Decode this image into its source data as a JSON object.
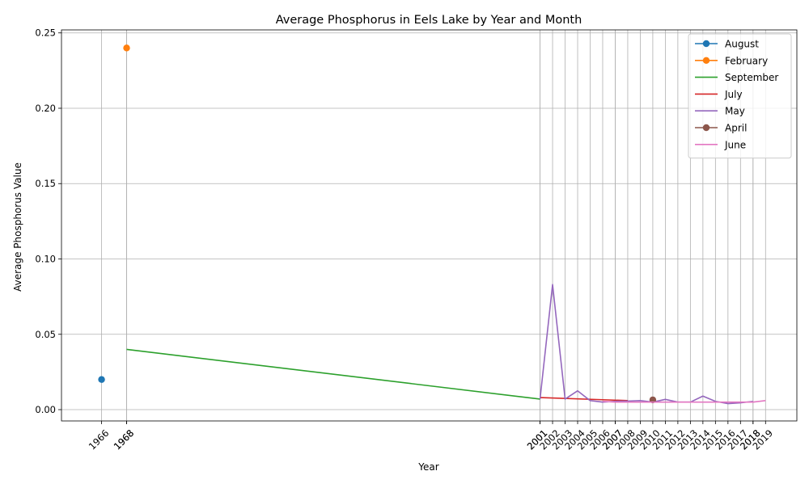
{
  "chart_data": {
    "type": "line",
    "title": "Average Phosphorus in Eels Lake by Year and Month",
    "xlabel": "Year",
    "ylabel": "Average Phosphorus Value",
    "xlim": [
      1962.8,
      2021.5
    ],
    "ylim": [
      -0.0075,
      0.252
    ],
    "x_ticks": [
      "1966",
      "1968",
      "1968",
      "2001",
      "2001",
      "2002",
      "2003",
      "2004",
      "2005",
      "2006",
      "2007",
      "2007",
      "2008",
      "2009",
      "2010",
      "2011",
      "2012",
      "2013",
      "2014",
      "2015",
      "2016",
      "2017",
      "2018",
      "2018",
      "2019"
    ],
    "y_ticks": [
      "0.00",
      "0.05",
      "0.10",
      "0.15",
      "0.20",
      "0.25"
    ],
    "grid": true,
    "legend_position": "top-right",
    "series": [
      {
        "name": "August",
        "color": "#1f77b4",
        "marker": true,
        "x": [
          1966
        ],
        "y": [
          0.02
        ]
      },
      {
        "name": "February",
        "color": "#ff7f0e",
        "marker": true,
        "x": [
          1968
        ],
        "y": [
          0.24
        ]
      },
      {
        "name": "September",
        "color": "#2ca02c",
        "marker": false,
        "x": [
          1968,
          2001
        ],
        "y": [
          0.04,
          0.007
        ]
      },
      {
        "name": "July",
        "color": "#d62728",
        "marker": false,
        "x": [
          2001,
          2008
        ],
        "y": [
          0.008,
          0.006
        ]
      },
      {
        "name": "May",
        "color": "#9467bd",
        "marker": false,
        "x": [
          2001,
          2002,
          2003,
          2004,
          2005,
          2006,
          2007,
          2008,
          2009,
          2010,
          2011,
          2012,
          2013,
          2014,
          2015,
          2016,
          2017,
          2018
        ],
        "y": [
          0.007,
          0.083,
          0.007,
          0.0125,
          0.006,
          0.005,
          0.0055,
          0.0057,
          0.006,
          0.005,
          0.0068,
          0.005,
          0.005,
          0.009,
          0.0055,
          0.004,
          0.0045,
          0.0055
        ]
      },
      {
        "name": "April",
        "color": "#8c564b",
        "marker": true,
        "x": [
          2010
        ],
        "y": [
          0.0065
        ]
      },
      {
        "name": "June",
        "color": "#e377c2",
        "marker": false,
        "x": [
          2006,
          2007,
          2018,
          2019
        ],
        "y": [
          0.0055,
          0.005,
          0.005,
          0.006
        ]
      }
    ]
  }
}
